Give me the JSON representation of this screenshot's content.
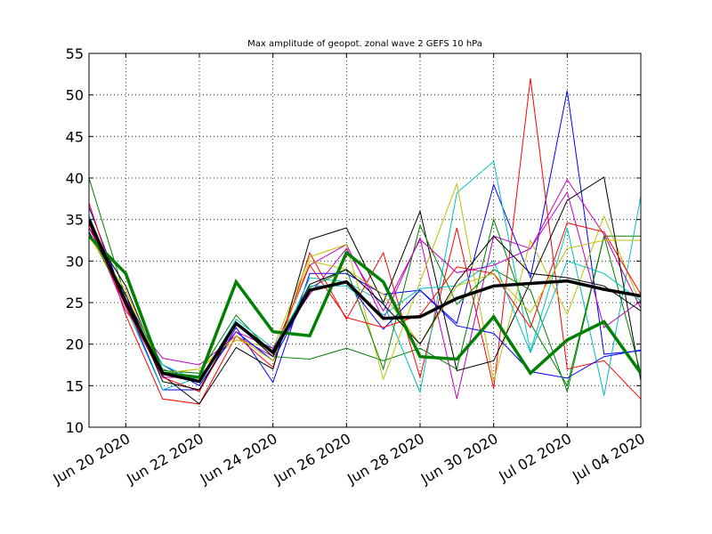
{
  "chart_data": {
    "type": "line",
    "title": "Max amplitude of geopot. zonal wave 2 GEFS 10 hPa",
    "xlabel": "",
    "ylabel": "",
    "ylim": [
      10,
      55
    ],
    "xlim": [
      "2020-06-19 00:00",
      "2020-07-04 00:00"
    ],
    "yticks": [
      10,
      15,
      20,
      25,
      30,
      35,
      40,
      45,
      50,
      55
    ],
    "xticks": [
      "2020-06-20",
      "2020-06-22",
      "2020-06-24",
      "2020-06-26",
      "2020-06-28",
      "2020-06-30",
      "2020-07-02",
      "2020-07-04"
    ],
    "xtick_labels": [
      "Jun 20 2020",
      "Jun 22 2020",
      "Jun 24 2020",
      "Jun 26 2020",
      "Jun 28 2020",
      "Jun 30 2020",
      "Jul 02 2020",
      "Jul 04 2020"
    ],
    "grid": true,
    "x": [
      "2020-06-19 00:00",
      "2020-06-20 00:00",
      "2020-06-21 00:00",
      "2020-06-22 00:00",
      "2020-06-23 00:00",
      "2020-06-24 00:00",
      "2020-06-25 00:00",
      "2020-06-26 00:00",
      "2020-06-27 00:00",
      "2020-06-28 00:00",
      "2020-06-29 00:00",
      "2020-06-30 00:00",
      "2020-07-01 00:00",
      "2020-07-02 00:00",
      "2020-07-03 00:00",
      "2020-07-04 00:00"
    ],
    "series": [
      {
        "color": "#0000ff",
        "width": 1,
        "values": [
          36.5,
          25.0,
          14.5,
          14.5,
          22.0,
          15.4,
          28.5,
          28.5,
          26.0,
          26.5,
          22.5,
          39.2,
          28.0,
          50.5,
          18.8,
          19.2
        ]
      },
      {
        "color": "#008000",
        "width": 1,
        "values": [
          40.0,
          25.5,
          17.0,
          15.5,
          22.5,
          18.5,
          18.2,
          19.5,
          18.0,
          19.5,
          17.0,
          35.0,
          22.5,
          15.0,
          33.0,
          33.0
        ]
      },
      {
        "color": "#ff0000",
        "width": 1,
        "values": [
          37.0,
          23.5,
          13.4,
          12.8,
          21.0,
          17.2,
          31.0,
          23.0,
          31.0,
          16.0,
          34.0,
          14.7,
          52.0,
          17.0,
          18.0,
          13.4
        ]
      },
      {
        "color": "#00bfbf",
        "width": 1,
        "values": [
          35.5,
          24.5,
          14.5,
          16.0,
          21.5,
          18.0,
          28.0,
          27.5,
          25.0,
          14.2,
          38.2,
          42.0,
          19.1,
          34.0,
          13.8,
          37.8
        ]
      },
      {
        "color": "#bf00bf",
        "width": 1,
        "values": [
          34.5,
          24.0,
          18.3,
          17.5,
          21.0,
          18.5,
          29.5,
          32.0,
          23.0,
          32.8,
          13.4,
          33.0,
          31.5,
          39.8,
          33.2,
          24.3
        ]
      },
      {
        "color": "#bfbf00",
        "width": 1,
        "values": [
          33.0,
          26.0,
          16.5,
          17.0,
          20.5,
          19.5,
          30.5,
          32.0,
          15.8,
          27.5,
          39.3,
          15.5,
          32.5,
          23.6,
          35.4,
          24.8
        ]
      },
      {
        "color": "#000000",
        "width": 1,
        "values": [
          34.0,
          27.0,
          16.2,
          12.8,
          19.6,
          17.0,
          32.6,
          34.0,
          25.0,
          36.0,
          16.8,
          18.0,
          27.5,
          37.3,
          40.1,
          15.6
        ]
      },
      {
        "color": "#0000ff",
        "width": 1,
        "values": [
          35.0,
          25.5,
          17.5,
          15.0,
          21.5,
          18.0,
          26.5,
          27.5,
          21.8,
          26.5,
          22.2,
          21.3,
          16.7,
          15.9,
          18.5,
          19.3
        ]
      },
      {
        "color": "#008000",
        "width": 1,
        "values": [
          33.5,
          25.0,
          16.8,
          16.5,
          23.5,
          18.8,
          26.8,
          29.0,
          17.0,
          34.3,
          24.8,
          29.0,
          26.5,
          14.3,
          33.0,
          16.5
        ]
      },
      {
        "color": "#ff0000",
        "width": 1,
        "values": [
          34.5,
          24.5,
          16.0,
          14.3,
          22.5,
          19.0,
          29.5,
          23.2,
          22.0,
          23.5,
          29.3,
          28.5,
          22.0,
          34.6,
          33.5,
          26.0
        ]
      },
      {
        "color": "#00bfbf",
        "width": 1,
        "values": [
          35.0,
          25.0,
          17.5,
          15.5,
          23.0,
          19.5,
          27.0,
          27.0,
          23.5,
          26.7,
          27.0,
          30.0,
          19.0,
          30.0,
          28.5,
          25.2
        ]
      },
      {
        "color": "#bf00bf",
        "width": 1,
        "values": [
          34.0,
          25.5,
          16.0,
          16.0,
          21.5,
          19.5,
          26.0,
          31.5,
          24.0,
          32.6,
          28.6,
          29.5,
          31.5,
          38.3,
          22.0,
          25.2
        ]
      },
      {
        "color": "#bfbf00",
        "width": 1,
        "values": [
          33.0,
          26.5,
          16.5,
          17.0,
          21.0,
          18.0,
          30.0,
          29.0,
          26.0,
          20.0,
          27.0,
          28.5,
          23.8,
          31.5,
          32.5,
          32.5
        ]
      },
      {
        "color": "#000000",
        "width": 1,
        "values": [
          33.5,
          26.0,
          15.5,
          14.5,
          22.5,
          18.5,
          27.2,
          29.0,
          24.8,
          20.0,
          27.5,
          33.0,
          28.5,
          28.0,
          27.0,
          24.0
        ]
      },
      {
        "color": "#008000",
        "width": 3.5,
        "values": [
          33.0,
          28.5,
          16.5,
          16.0,
          27.5,
          21.5,
          21.0,
          31.0,
          27.5,
          18.5,
          18.2,
          23.3,
          16.5,
          20.5,
          22.7,
          16.5
        ]
      },
      {
        "color": "#000000",
        "width": 3.5,
        "values": [
          35.0,
          25.0,
          16.5,
          15.5,
          22.5,
          19.0,
          26.5,
          27.5,
          23.1,
          23.3,
          25.5,
          27.0,
          27.3,
          27.6,
          26.6,
          25.8
        ]
      }
    ]
  }
}
